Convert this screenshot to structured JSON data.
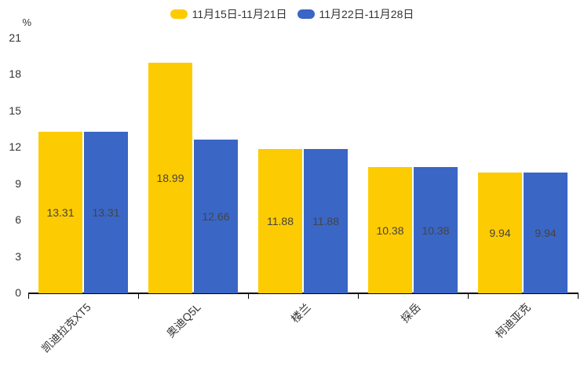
{
  "chart_data": {
    "type": "bar",
    "categories": [
      "凯迪拉克XT5",
      "奥迪Q5L",
      "楼兰",
      "探岳",
      "柯迪亚克"
    ],
    "series": [
      {
        "name": "11月15日-11月21日",
        "color": "#fdcb02",
        "values": [
          13.31,
          18.99,
          11.88,
          10.38,
          9.94
        ]
      },
      {
        "name": "11月22日-11月28日",
        "color": "#3a66c5",
        "values": [
          13.31,
          12.66,
          11.88,
          10.38,
          9.94
        ]
      }
    ],
    "title": "",
    "xlabel": "",
    "ylabel": "%",
    "ylim": [
      0,
      21
    ],
    "yticks": [
      0,
      3,
      6,
      9,
      12,
      15,
      18,
      21
    ],
    "legend_position": "top-center",
    "grid": false,
    "value_labels": "inside-center"
  },
  "colors": {
    "background": "#ffffff",
    "axis_line": "#000000",
    "tick_label": "#333333",
    "value_label": "#444444",
    "series_yellow": "#fdcb02",
    "series_blue": "#3a66c5"
  }
}
